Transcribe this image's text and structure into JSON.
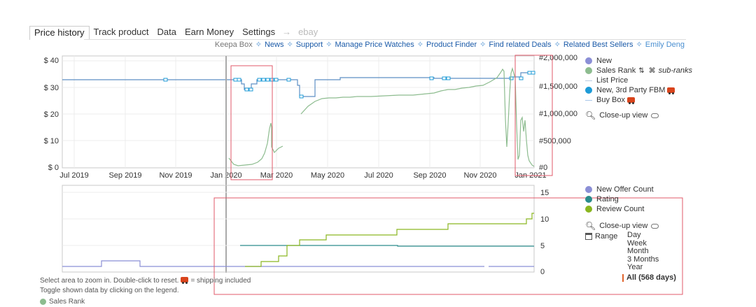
{
  "tabs": {
    "items": [
      "Price history",
      "Track product",
      "Data",
      "Earn Money",
      "Settings"
    ],
    "arrow": "→",
    "ebay": "ebay"
  },
  "links": {
    "keepa_box": "Keepa Box",
    "items": [
      "News",
      "Support",
      "Manage Price Watches",
      "Product Finder",
      "Find related Deals",
      "Related Best Sellers"
    ],
    "separator": "✧",
    "user": "Emily Deng"
  },
  "main_chart": {
    "y_left_ticks": [
      "$ 0",
      "$ 10",
      "$ 20",
      "$ 30",
      "$ 40"
    ],
    "y_right_ticks": [
      "#0",
      "#500,000",
      "#1,000,000",
      "#1,500,000",
      "#2,000,000"
    ],
    "x_ticks": [
      "Jul 2019",
      "Sep 2019",
      "Nov 2019",
      "Jan 2020",
      "Mar 2020",
      "May 2020",
      "Jul 2020",
      "Sep 2020",
      "Nov 2020",
      "Jan 2021"
    ]
  },
  "lower_chart": {
    "y_right_ticks": [
      "0",
      "5",
      "10",
      "15"
    ]
  },
  "legend_main": {
    "new": "New",
    "sales_rank": "Sales Rank",
    "sub_ranks": "sub-ranks",
    "list_price": "List Price",
    "new_3p_fbm": "New, 3rd Party FBM",
    "buy_box": "Buy Box",
    "closeup": "Close-up view",
    "colors": {
      "new": "#8b8fd6",
      "sales_rank": "#8dbc8f",
      "list_price": "#b8cbe0",
      "new_3p_fbm": "#1e9bd7",
      "buy_box": "#a9c7e8"
    }
  },
  "legend_lower": {
    "new_offer_count": "New Offer Count",
    "rating": "Rating",
    "review_count": "Review Count",
    "closeup": "Close-up view",
    "range_label": "Range",
    "range_options": [
      "Day",
      "Week",
      "Month",
      "3 Months",
      "Year",
      "All (568 days)"
    ],
    "colors": {
      "new_offer_count": "#8b8fd6",
      "rating": "#2a8c8c",
      "review_count": "#8ab620"
    }
  },
  "footer": {
    "line1_a": "Select area to zoom in. Double-click to reset.",
    "line1_b": "= shipping included",
    "line2": "Toggle shown data by clicking on the legend.",
    "line3": "Sales Rank"
  }
}
